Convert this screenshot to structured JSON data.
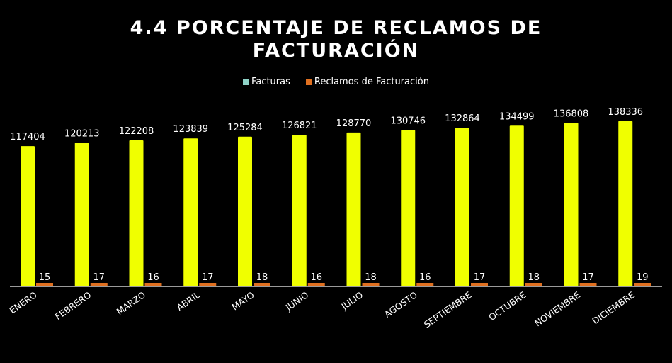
{
  "chart_data": {
    "type": "bar",
    "title_lines": [
      "4.4 PORCENTAJE DE RECLAMOS DE",
      "FACTURACIÓN"
    ],
    "categories": [
      "ENERO",
      "FEBRERO",
      "MARZO",
      "ABRIL",
      "MAYO",
      "JUNIO",
      "JULIO",
      "AGOSTO",
      "SEPTIEMBRE",
      "OCTUBRE",
      "NOVIEMBRE",
      "DICIEMBRE"
    ],
    "series": [
      {
        "name": "Facturas",
        "color": "#f0ff00",
        "legend_color": "#8fd3c7",
        "values": [
          117404,
          120213,
          122208,
          123839,
          125284,
          126821,
          128770,
          130746,
          132864,
          134499,
          136808,
          138336
        ]
      },
      {
        "name": "Reclamos de Facturación",
        "color": "#e07020",
        "legend_color": "#e07020",
        "values": [
          15,
          17,
          16,
          17,
          18,
          16,
          18,
          16,
          17,
          18,
          17,
          19
        ]
      }
    ],
    "legend_position": "top-center",
    "grid": false,
    "ylim": [
      0,
      140000
    ]
  }
}
